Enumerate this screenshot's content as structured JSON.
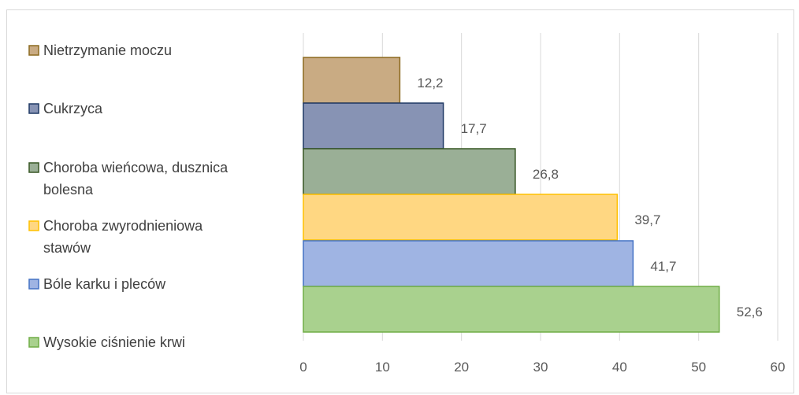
{
  "chart_data": {
    "type": "bar",
    "orientation": "horizontal",
    "series": [
      {
        "name": "Nietrzymanie moczu",
        "value": 12.2,
        "value_label": "12,2",
        "color": "#c9ab83",
        "border": "#8c6a1f"
      },
      {
        "name": "Cukrzyca",
        "value": 17.7,
        "value_label": "17,7",
        "color": "#8793b4",
        "border": "#1f3864"
      },
      {
        "name": "Choroba wieńcowa, dusznica bolesna",
        "value": 26.8,
        "value_label": "26,8",
        "color": "#9aaf96",
        "border": "#375623"
      },
      {
        "name": "Choroba zwyrodnieniowa stawów",
        "value": 39.7,
        "value_label": "39,7",
        "color": "#ffd782",
        "border": "#ffc000"
      },
      {
        "name": "Bóle karku i pleców",
        "value": 41.7,
        "value_label": "41,7",
        "color": "#9fb4e3",
        "border": "#4472c4"
      },
      {
        "name": "Wysokie ciśnienie krwi",
        "value": 52.6,
        "value_label": "52,6",
        "color": "#a9d18e",
        "border": "#70ad47"
      }
    ],
    "xlim": [
      0,
      60
    ],
    "x_ticks": [
      "0",
      "10",
      "20",
      "30",
      "40",
      "50",
      "60"
    ],
    "grid": true,
    "legend_placement": "left",
    "title": "",
    "xlabel": "",
    "ylabel": ""
  }
}
